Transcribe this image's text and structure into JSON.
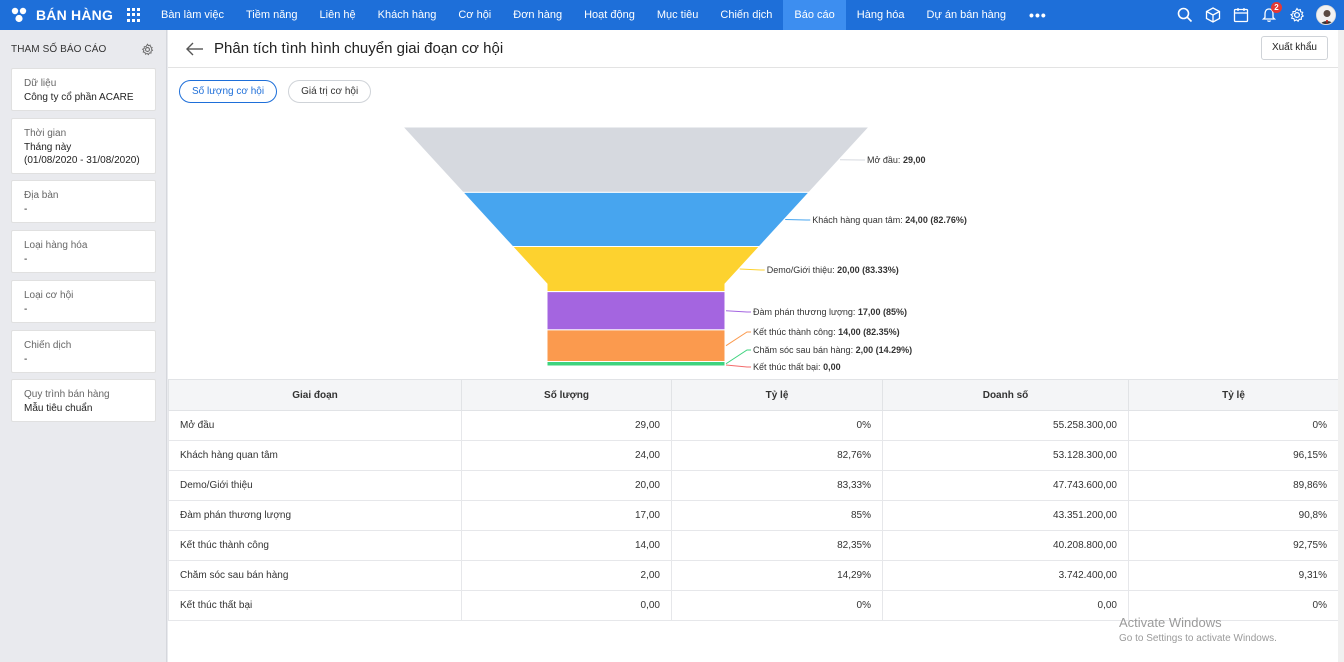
{
  "app": {
    "brand": "BÁN HÀNG",
    "nav": [
      "Bàn làm việc",
      "Tiềm năng",
      "Liên hệ",
      "Khách hàng",
      "Cơ hội",
      "Đơn hàng",
      "Hoạt động",
      "Mục tiêu",
      "Chiến dịch",
      "Báo cáo",
      "Hàng hóa",
      "Dự án bán hàng"
    ],
    "active_nav": "Báo cáo",
    "more": "•••",
    "notification_count": "2",
    "icons": [
      "search-icon",
      "package-icon",
      "calendar-icon",
      "bell-icon",
      "gear-icon",
      "avatar"
    ]
  },
  "sidebar": {
    "title": "THAM SỐ BÁO CÁO",
    "params": [
      {
        "label": "Dữ liệu",
        "value": "Công ty cổ phần ACARE"
      },
      {
        "label": "Thời gian",
        "value": "Tháng này",
        "value2": "(01/08/2020 - 31/08/2020)"
      },
      {
        "label": "Địa bàn",
        "value": "-"
      },
      {
        "label": "Loại hàng hóa",
        "value": "-"
      },
      {
        "label": "Loại cơ hội",
        "value": "-"
      },
      {
        "label": "Chiến dịch",
        "value": "-"
      },
      {
        "label": "Quy trình bán hàng",
        "value": "Mẫu tiêu chuẩn"
      }
    ]
  },
  "page": {
    "title": "Phân tích tình hình chuyển giai đoạn cơ hội",
    "export_label": "Xuất khẩu",
    "tabs": [
      "Số lượng cơ hội",
      "Giá trị cơ hội"
    ],
    "active_tab": 0
  },
  "chart_data": {
    "type": "funnel",
    "stages": [
      {
        "name": "Mở đầu",
        "value": 29.0,
        "label_value": "29,00",
        "pct": null,
        "color": "#d6d9df"
      },
      {
        "name": "Khách hàng quan tâm",
        "value": 24.0,
        "label_value": "24,00 (82.76%)",
        "pct": 82.76,
        "color": "#47a5ef"
      },
      {
        "name": "Demo/Giới thiệu",
        "value": 20.0,
        "label_value": "20,00 (83.33%)",
        "pct": 83.33,
        "color": "#fdd22f"
      },
      {
        "name": "Đàm phán thương lượng",
        "value": 17.0,
        "label_value": "17,00 (85%)",
        "pct": 85,
        "color": "#a465e0"
      },
      {
        "name": "Kết thúc thành công",
        "value": 14.0,
        "label_value": "14,00 (82.35%)",
        "pct": 82.35,
        "color": "#fb9a4e"
      },
      {
        "name": "Chăm sóc sau bán hàng",
        "value": 2.0,
        "label_value": "2,00 (14.29%)",
        "pct": 14.29,
        "color": "#3ed37e"
      },
      {
        "name": "Kết thúc thất bại",
        "value": 0.0,
        "label_value": "0,00",
        "pct": null,
        "color": "#f36b6b"
      }
    ]
  },
  "table": {
    "headers": [
      "Giai đoạn",
      "Số lượng",
      "Tỷ lệ",
      "Doanh số",
      "Tỷ lệ"
    ],
    "rows": [
      [
        "Mở đầu",
        "29,00",
        "0%",
        "55.258.300,00",
        "0%"
      ],
      [
        "Khách hàng quan tâm",
        "24,00",
        "82,76%",
        "53.128.300,00",
        "96,15%"
      ],
      [
        "Demo/Giới thiệu",
        "20,00",
        "83,33%",
        "47.743.600,00",
        "89,86%"
      ],
      [
        "Đàm phán thương lượng",
        "17,00",
        "85%",
        "43.351.200,00",
        "90,8%"
      ],
      [
        "Kết thúc thành công",
        "14,00",
        "82,35%",
        "40.208.800,00",
        "92,75%"
      ],
      [
        "Chăm sóc sau bán hàng",
        "2,00",
        "14,29%",
        "3.742.400,00",
        "9,31%"
      ],
      [
        "Kết thúc thất bại",
        "0,00",
        "0%",
        "0,00",
        "0%"
      ]
    ]
  },
  "watermark": {
    "line1": "Activate Windows",
    "line2": "Go to Settings to activate Windows."
  }
}
